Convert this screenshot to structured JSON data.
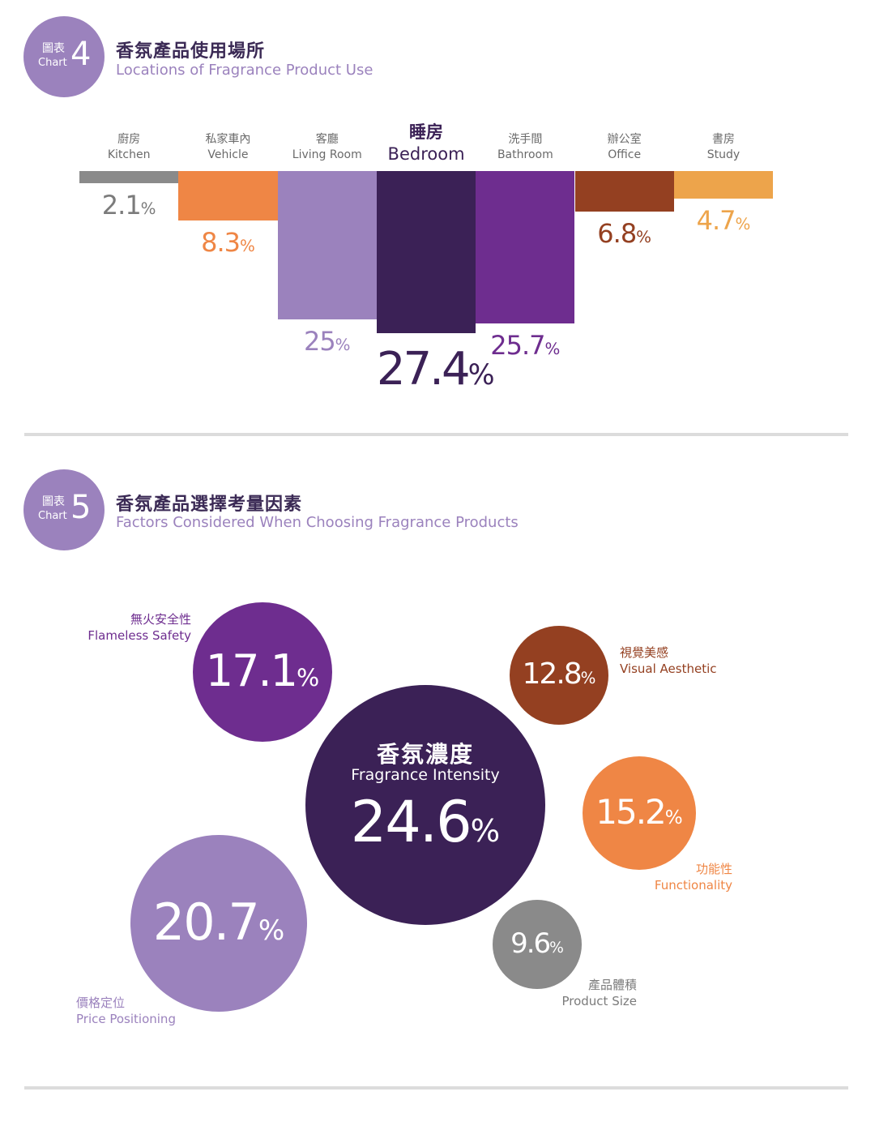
{
  "chart4": {
    "badge": {
      "zh": "圖表",
      "en": "Chart",
      "num": "4"
    },
    "title_zh": "香氛產品使用場所",
    "title_en": "Locations of Fragrance Product Use"
  },
  "chart5": {
    "badge": {
      "zh": "圖表",
      "en": "Chart",
      "num": "5"
    },
    "title_zh": "香氛產品選擇考量因素",
    "title_en": "Factors Considered When Choosing Fragrance Products",
    "center_label_zh": "香氛濃度",
    "center_label_en": "Fragrance Intensity"
  },
  "chart_data": [
    {
      "type": "bar",
      "title": "香氛產品使用場所 Locations of Fragrance Product Use",
      "categories": [
        {
          "zh": "廚房",
          "en": "Kitchen"
        },
        {
          "zh": "私家車內",
          "en": "Vehicle"
        },
        {
          "zh": "客廳",
          "en": "Living Room"
        },
        {
          "zh": "睡房",
          "en": "Bedroom"
        },
        {
          "zh": "洗手間",
          "en": "Bathroom"
        },
        {
          "zh": "辦公室",
          "en": "Office"
        },
        {
          "zh": "書房",
          "en": "Study"
        }
      ],
      "values": [
        2.1,
        8.3,
        25,
        27.4,
        25.7,
        6.8,
        4.7
      ],
      "value_labels": [
        "2.1",
        "8.3",
        "25",
        "27.4",
        "25.7",
        "6.8",
        "4.7"
      ],
      "unit": "%",
      "colors": [
        "#8a8a8a",
        "#ef8645",
        "#9b82bd",
        "#3b2156",
        "#6e2d8f",
        "#944021",
        "#eda44b"
      ],
      "highlight": "Bedroom"
    },
    {
      "type": "bubble",
      "title": "香氛產品選擇考量因素 Factors Considered When Choosing Fragrance Products",
      "items": [
        {
          "zh": "香氛濃度",
          "en": "Fragrance Intensity",
          "value": 24.6,
          "label": "24.6",
          "color": "#3b2156"
        },
        {
          "zh": "價格定位",
          "en": "Price Positioning",
          "value": 20.7,
          "label": "20.7",
          "color": "#9b82bd"
        },
        {
          "zh": "無火安全性",
          "en": "Flameless Safety",
          "value": 17.1,
          "label": "17.1",
          "color": "#6e2d8f"
        },
        {
          "zh": "功能性",
          "en": "Functionality",
          "value": 15.2,
          "label": "15.2",
          "color": "#ef8645"
        },
        {
          "zh": "視覺美感",
          "en": "Visual Aesthetic",
          "value": 12.8,
          "label": "12.8",
          "color": "#944021"
        },
        {
          "zh": "產品體積",
          "en": "Product Size",
          "value": 9.6,
          "label": "9.6",
          "color": "#8a8a8a"
        }
      ],
      "unit": "%"
    }
  ]
}
